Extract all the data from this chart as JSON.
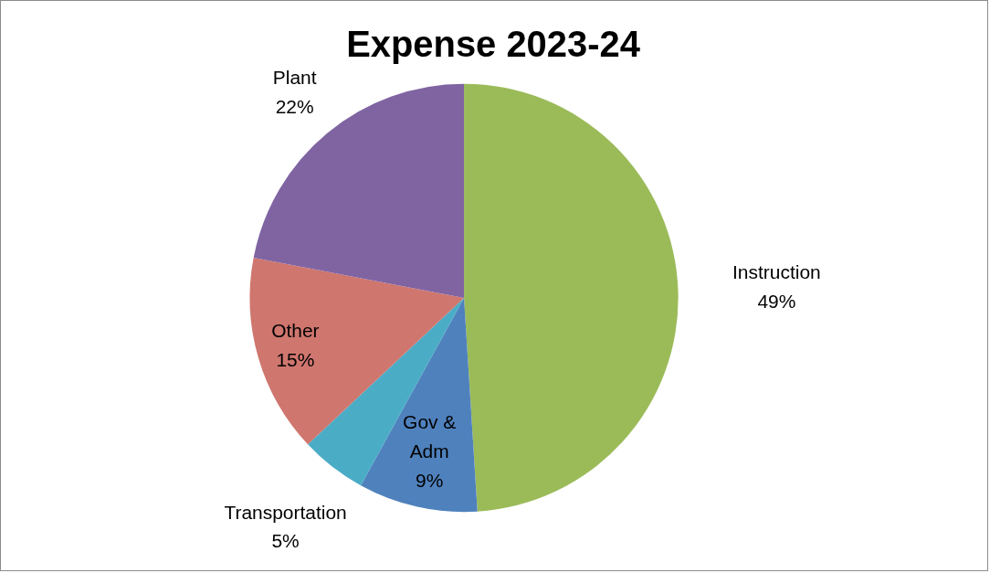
{
  "chart_data": {
    "type": "pie",
    "title": "Expense 2023-24",
    "categories": [
      "Instruction",
      "Gov & Adm",
      "Transportation",
      "Other",
      "Plant"
    ],
    "values": [
      49,
      9,
      5,
      15,
      22
    ],
    "colors": [
      "#9bbb59",
      "#4f81bd",
      "#4bacc6",
      "#cf766f",
      "#8064a2"
    ],
    "value_labels": [
      "49%",
      "9%",
      "5%",
      "15%",
      "22%"
    ],
    "legend": false
  }
}
